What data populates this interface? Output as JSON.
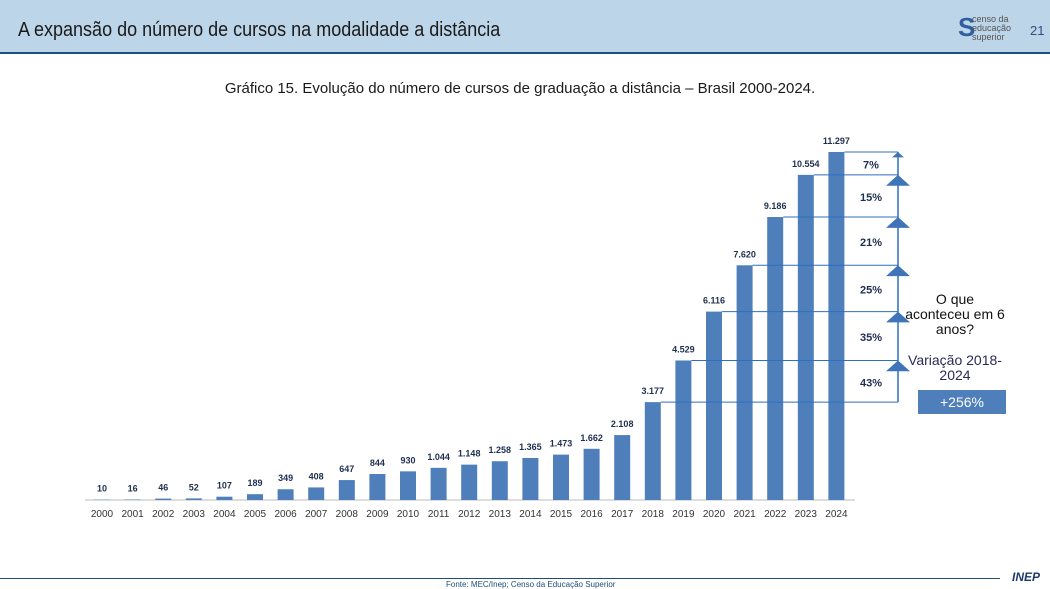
{
  "header": {
    "title": "A expansão do número de cursos na modalidade a distância",
    "page_number": "21",
    "logo_text": "censo da educação superior"
  },
  "footer": {
    "source": "Fonte: MEC/Inep; Censo da Educação Superior",
    "logo": "INEP"
  },
  "side": {
    "question": "O que aconteceu em 6 anos?",
    "variation_label": "Variação 2018-2024",
    "variation_value": "+256%"
  },
  "chart_data": {
    "type": "bar",
    "title": "Gráfico 15. Evolução do número de cursos de graduação a distância –  Brasil 2000-2024.",
    "categories": [
      "2000",
      "2001",
      "2002",
      "2003",
      "2004",
      "2005",
      "2006",
      "2007",
      "2008",
      "2009",
      "2010",
      "2011",
      "2012",
      "2013",
      "2014",
      "2015",
      "2016",
      "2017",
      "2018",
      "2019",
      "2020",
      "2021",
      "2022",
      "2023",
      "2024"
    ],
    "values": [
      10,
      16,
      46,
      52,
      107,
      189,
      349,
      408,
      647,
      844,
      930,
      1044,
      1148,
      1258,
      1365,
      1473,
      1662,
      2108,
      3177,
      4529,
      6116,
      7620,
      9186,
      10554,
      11297
    ],
    "labels": [
      "10",
      "16",
      "46",
      "52",
      "107",
      "189",
      "349",
      "408",
      "647",
      "844",
      "930",
      "1.044",
      "1.148",
      "1.258",
      "1.365",
      "1.473",
      "1.662",
      "2.108",
      "3.177",
      "4.529",
      "6.116",
      "7.620",
      "9.186",
      "10.554",
      "11.297"
    ],
    "growth": [
      {
        "from": "2018",
        "to": "2019",
        "label": "43%"
      },
      {
        "from": "2019",
        "to": "2020",
        "label": "35%"
      },
      {
        "from": "2020",
        "to": "2021",
        "label": "25%"
      },
      {
        "from": "2021",
        "to": "2022",
        "label": "21%"
      },
      {
        "from": "2022",
        "to": "2023",
        "label": "15%"
      },
      {
        "from": "2023",
        "to": "2024",
        "label": "7%"
      }
    ],
    "ylim": [
      0,
      11297
    ],
    "color": "#4e7fba"
  }
}
